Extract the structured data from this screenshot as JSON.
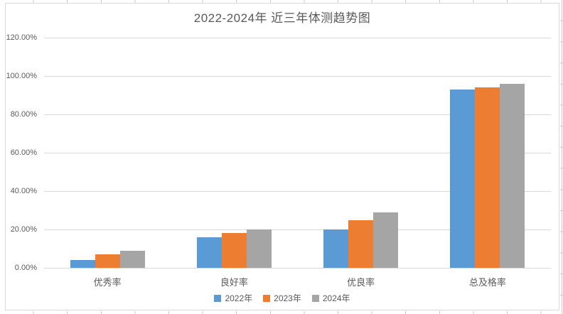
{
  "title": "2022-2024年 近三年体测趋势图",
  "colors": {
    "series": [
      "#5B9BD5",
      "#ED7D31",
      "#A5A5A5"
    ],
    "gridline": "#D9D9D9",
    "axis_line": "#D9D9D9",
    "text": "#595959",
    "chart_border": "#D9D9D9"
  },
  "chart_data": {
    "type": "bar",
    "title": "2022-2024年 近三年体测趋势图",
    "categories": [
      "优秀率",
      "良好率",
      "优良率",
      "总及格率"
    ],
    "series": [
      {
        "name": "2022年",
        "color": "#5B9BD5",
        "values": [
          4,
          16,
          20,
          93
        ]
      },
      {
        "name": "2023年",
        "color": "#ED7D31",
        "values": [
          7,
          18,
          25,
          94
        ]
      },
      {
        "name": "2024年",
        "color": "#A5A5A5",
        "values": [
          9,
          20,
          29,
          96
        ]
      }
    ],
    "unit": "%",
    "ylim": [
      0,
      120
    ],
    "y_tick_step": 20,
    "y_tick_labels": [
      "120.00%",
      "100.00%",
      "80.00%",
      "60.00%",
      "40.00%",
      "20.00%",
      "0.00%"
    ],
    "grid": true,
    "legend_position": "bottom",
    "xlabel": "",
    "ylabel": ""
  }
}
